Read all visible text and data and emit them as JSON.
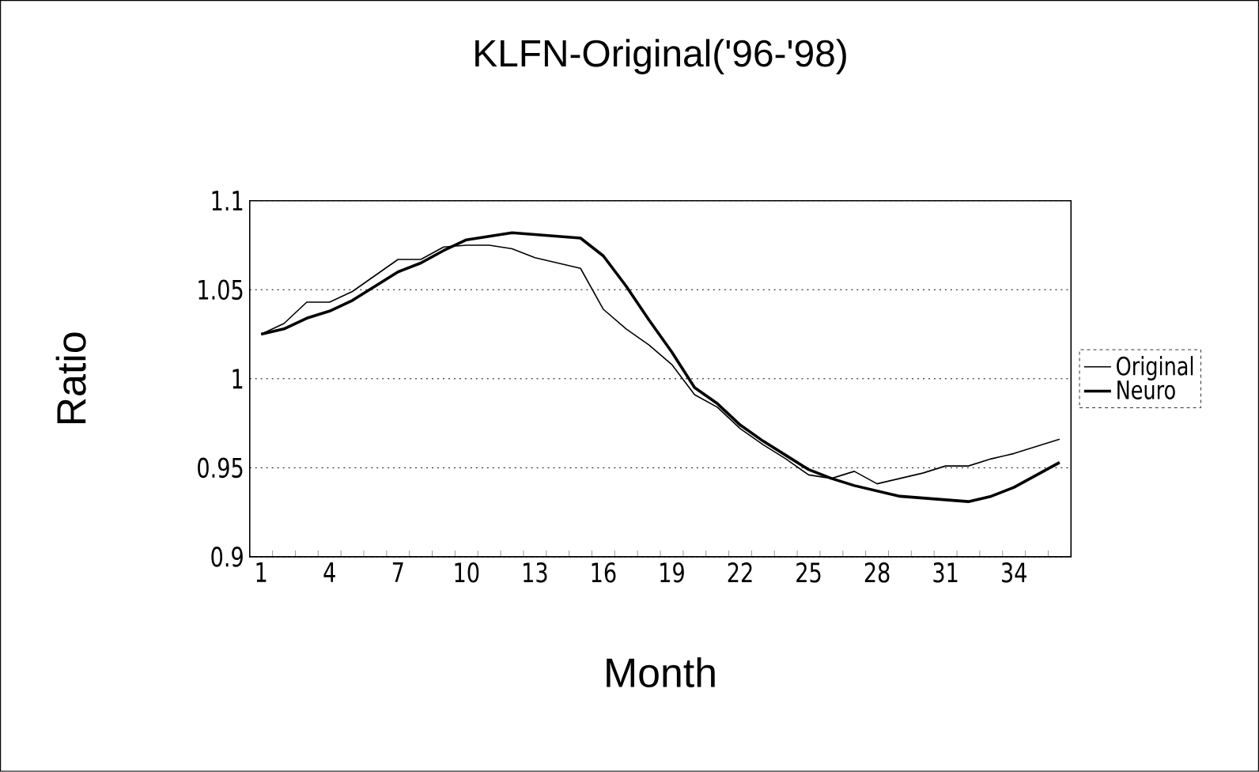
{
  "chart_data": {
    "type": "line",
    "title": "KLFN-Original('96-'98)",
    "xlabel": "Month",
    "ylabel": "Ratio",
    "categories": [
      "1",
      null,
      null,
      "4",
      null,
      null,
      "7",
      null,
      null,
      "10",
      null,
      null,
      "13",
      null,
      null,
      "16",
      null,
      null,
      "19",
      null,
      null,
      "22",
      null,
      null,
      "25",
      null,
      null,
      "28",
      null,
      null,
      "31",
      null,
      null,
      "34",
      null,
      null
    ],
    "series": [
      {
        "name": "Original",
        "color": "#000000",
        "values": [
          1.025,
          1.031,
          1.043,
          1.043,
          1.049,
          1.058,
          1.067,
          1.067,
          1.074,
          1.075,
          1.075,
          1.073,
          1.068,
          1.065,
          1.062,
          1.039,
          1.028,
          1.019,
          1.008,
          0.991,
          0.984,
          0.972,
          0.963,
          0.955,
          0.946,
          0.944,
          0.948,
          0.941,
          0.944,
          0.947,
          0.951,
          0.951,
          0.955,
          0.958,
          0.962,
          0.966
        ]
      },
      {
        "name": "Neuro",
        "color": "#000000",
        "values": [
          1.025,
          1.028,
          1.034,
          1.038,
          1.044,
          1.052,
          1.06,
          1.065,
          1.072,
          1.078,
          1.08,
          1.082,
          1.081,
          1.08,
          1.079,
          1.069,
          1.052,
          1.033,
          1.015,
          0.995,
          0.986,
          0.974,
          0.965,
          0.957,
          0.949,
          0.944,
          0.94,
          0.937,
          0.934,
          0.933,
          0.932,
          0.931,
          0.934,
          0.939,
          0.946,
          0.953
        ]
      }
    ],
    "ylim": [
      0.9,
      1.1
    ],
    "yticks": [
      0.9,
      0.95,
      1,
      1.05,
      1.1
    ],
    "grid": "y",
    "legend": "right",
    "marker": "none",
    "line_style": "solid"
  }
}
